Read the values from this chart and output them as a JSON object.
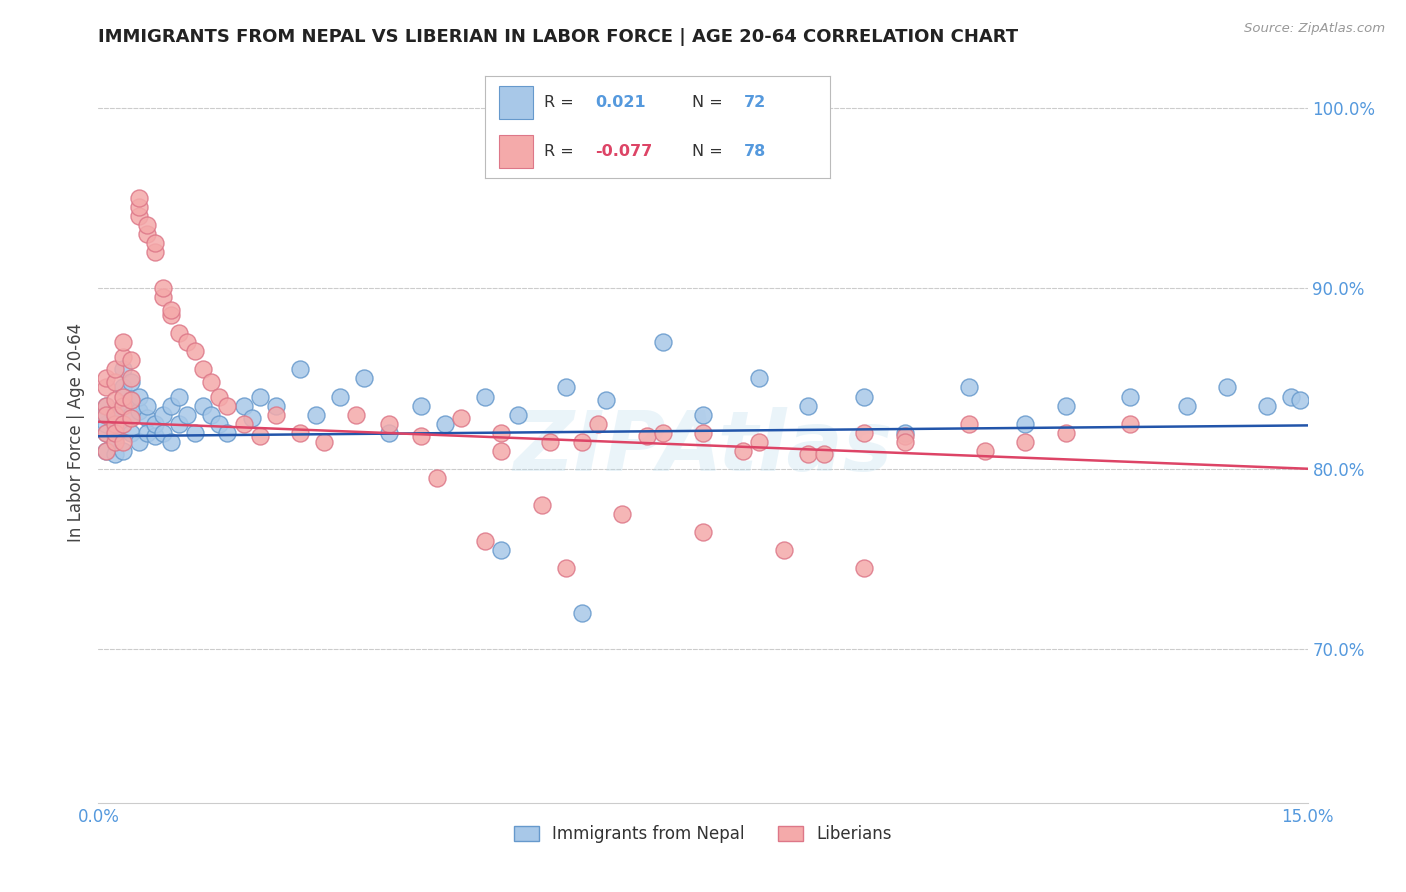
{
  "title": "IMMIGRANTS FROM NEPAL VS LIBERIAN IN LABOR FORCE | AGE 20-64 CORRELATION CHART",
  "source": "Source: ZipAtlas.com",
  "ylabel": "In Labor Force | Age 20-64",
  "xlim": [
    0.0,
    0.15
  ],
  "ylim": [
    0.615,
    1.025
  ],
  "yticks_right": [
    0.7,
    0.8,
    0.9,
    1.0
  ],
  "ytick_right_labels": [
    "70.0%",
    "80.0%",
    "90.0%",
    "100.0%"
  ],
  "nepal_color": "#a8c8e8",
  "nepal_edge_color": "#6699cc",
  "liberia_color": "#f4aaaa",
  "liberia_edge_color": "#dd7788",
  "nepal_line_color": "#2255aa",
  "liberia_line_color": "#dd4466",
  "grid_color": "#cccccc",
  "axis_color": "#5599dd",
  "title_color": "#222222",
  "watermark": "ZIPAtlas",
  "nepal_x": [
    0.001,
    0.001,
    0.001,
    0.001,
    0.001,
    0.002,
    0.002,
    0.002,
    0.002,
    0.002,
    0.002,
    0.003,
    0.003,
    0.003,
    0.003,
    0.003,
    0.004,
    0.004,
    0.004,
    0.004,
    0.005,
    0.005,
    0.005,
    0.006,
    0.006,
    0.006,
    0.007,
    0.007,
    0.008,
    0.008,
    0.009,
    0.009,
    0.01,
    0.01,
    0.011,
    0.012,
    0.013,
    0.014,
    0.015,
    0.016,
    0.018,
    0.019,
    0.02,
    0.022,
    0.025,
    0.027,
    0.03,
    0.033,
    0.036,
    0.04,
    0.043,
    0.048,
    0.052,
    0.058,
    0.063,
    0.07,
    0.075,
    0.082,
    0.088,
    0.095,
    0.1,
    0.108,
    0.115,
    0.12,
    0.128,
    0.135,
    0.14,
    0.145,
    0.148,
    0.149,
    0.05,
    0.06
  ],
  "nepal_y": [
    0.82,
    0.825,
    0.83,
    0.835,
    0.81,
    0.822,
    0.818,
    0.828,
    0.832,
    0.815,
    0.808,
    0.825,
    0.835,
    0.845,
    0.855,
    0.81,
    0.838,
    0.848,
    0.82,
    0.83,
    0.832,
    0.84,
    0.815,
    0.828,
    0.82,
    0.835,
    0.818,
    0.825,
    0.83,
    0.82,
    0.835,
    0.815,
    0.84,
    0.825,
    0.83,
    0.82,
    0.835,
    0.83,
    0.825,
    0.82,
    0.835,
    0.828,
    0.84,
    0.835,
    0.855,
    0.83,
    0.84,
    0.85,
    0.82,
    0.835,
    0.825,
    0.84,
    0.83,
    0.845,
    0.838,
    0.87,
    0.83,
    0.85,
    0.835,
    0.84,
    0.82,
    0.845,
    0.825,
    0.835,
    0.84,
    0.835,
    0.845,
    0.835,
    0.84,
    0.838,
    0.755,
    0.72
  ],
  "liberia_x": [
    0.001,
    0.001,
    0.001,
    0.001,
    0.001,
    0.001,
    0.002,
    0.002,
    0.002,
    0.002,
    0.002,
    0.002,
    0.002,
    0.003,
    0.003,
    0.003,
    0.003,
    0.003,
    0.003,
    0.004,
    0.004,
    0.004,
    0.004,
    0.005,
    0.005,
    0.005,
    0.006,
    0.006,
    0.007,
    0.007,
    0.008,
    0.008,
    0.009,
    0.009,
    0.01,
    0.011,
    0.012,
    0.013,
    0.014,
    0.015,
    0.016,
    0.018,
    0.02,
    0.022,
    0.025,
    0.028,
    0.032,
    0.036,
    0.04,
    0.045,
    0.05,
    0.056,
    0.062,
    0.068,
    0.075,
    0.082,
    0.088,
    0.095,
    0.1,
    0.108,
    0.115,
    0.12,
    0.128,
    0.05,
    0.06,
    0.07,
    0.08,
    0.09,
    0.1,
    0.11,
    0.065,
    0.075,
    0.085,
    0.095,
    0.042,
    0.055,
    0.048,
    0.058
  ],
  "liberia_y": [
    0.835,
    0.845,
    0.85,
    0.82,
    0.81,
    0.83,
    0.838,
    0.825,
    0.815,
    0.848,
    0.83,
    0.82,
    0.855,
    0.862,
    0.87,
    0.835,
    0.825,
    0.84,
    0.815,
    0.828,
    0.85,
    0.838,
    0.86,
    0.94,
    0.945,
    0.95,
    0.93,
    0.935,
    0.92,
    0.925,
    0.895,
    0.9,
    0.885,
    0.888,
    0.875,
    0.87,
    0.865,
    0.855,
    0.848,
    0.84,
    0.835,
    0.825,
    0.818,
    0.83,
    0.82,
    0.815,
    0.83,
    0.825,
    0.818,
    0.828,
    0.82,
    0.815,
    0.825,
    0.818,
    0.82,
    0.815,
    0.808,
    0.82,
    0.818,
    0.825,
    0.815,
    0.82,
    0.825,
    0.81,
    0.815,
    0.82,
    0.81,
    0.808,
    0.815,
    0.81,
    0.775,
    0.765,
    0.755,
    0.745,
    0.795,
    0.78,
    0.76,
    0.745
  ],
  "nepal_trend_x": [
    0.0,
    0.15
  ],
  "nepal_trend_y": [
    0.818,
    0.824
  ],
  "liberia_trend_x": [
    0.0,
    0.15
  ],
  "liberia_trend_y": [
    0.826,
    0.8
  ]
}
